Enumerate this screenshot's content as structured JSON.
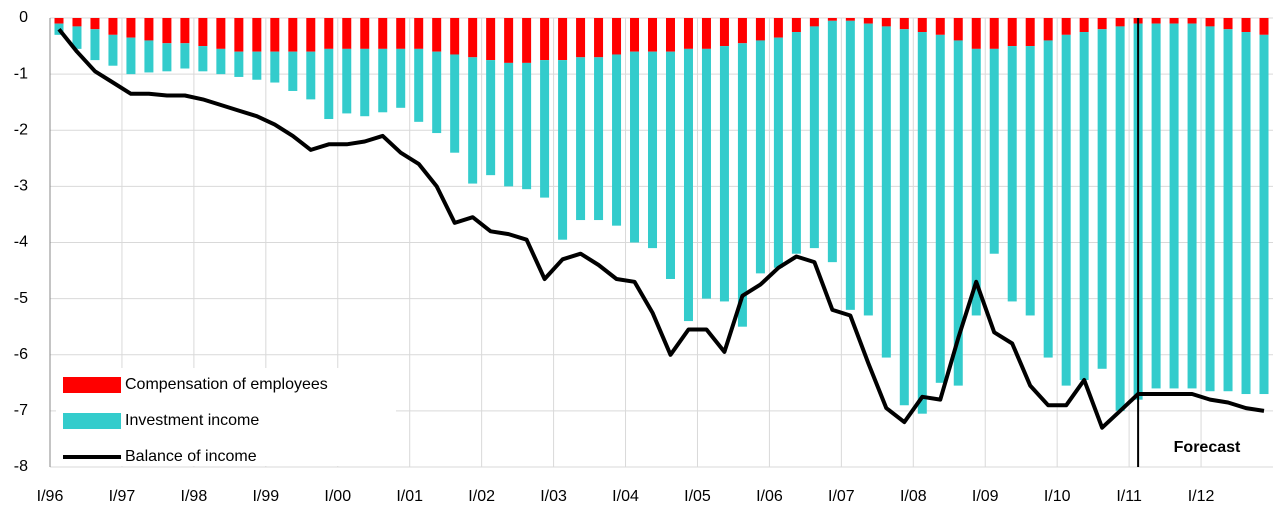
{
  "chart_data": {
    "type": "stacked-bar-line",
    "categories": [
      "I/96",
      null,
      null,
      null,
      "I/97",
      null,
      null,
      null,
      "I/98",
      null,
      null,
      null,
      "I/99",
      null,
      null,
      null,
      "I/00",
      null,
      null,
      null,
      "I/01",
      null,
      null,
      null,
      "I/02",
      null,
      null,
      null,
      "I/03",
      null,
      null,
      null,
      "I/04",
      null,
      null,
      null,
      "I/05",
      null,
      null,
      null,
      "I/06",
      null,
      null,
      null,
      "I/07",
      null,
      null,
      null,
      "I/08",
      null,
      null,
      null,
      "I/09",
      null,
      null,
      null,
      "I/10",
      null,
      null,
      null,
      "I/11",
      null,
      null,
      null,
      "I/12",
      null,
      null,
      null
    ],
    "series": [
      {
        "name": "Compensation of employees",
        "color": "#ff0000",
        "kind": "bar",
        "values": [
          -0.1,
          -0.15,
          -0.2,
          -0.3,
          -0.35,
          -0.4,
          -0.45,
          -0.45,
          -0.5,
          -0.55,
          -0.6,
          -0.6,
          -0.6,
          -0.6,
          -0.6,
          -0.55,
          -0.55,
          -0.55,
          -0.55,
          -0.55,
          -0.55,
          -0.6,
          -0.65,
          -0.7,
          -0.75,
          -0.8,
          -0.8,
          -0.75,
          -0.75,
          -0.7,
          -0.7,
          -0.65,
          -0.6,
          -0.6,
          -0.6,
          -0.55,
          -0.55,
          -0.5,
          -0.45,
          -0.4,
          -0.35,
          -0.25,
          -0.15,
          -0.05,
          -0.05,
          -0.1,
          -0.15,
          -0.2,
          -0.25,
          -0.3,
          -0.4,
          -0.55,
          -0.55,
          -0.5,
          -0.5,
          -0.4,
          -0.3,
          -0.25,
          -0.2,
          -0.15,
          -0.1,
          -0.1,
          -0.1,
          -0.1,
          -0.15,
          -0.2,
          -0.25,
          -0.3
        ]
      },
      {
        "name": "Investment income",
        "color": "#33cccc",
        "kind": "bar",
        "values": [
          -0.2,
          -0.4,
          -0.55,
          -0.55,
          -0.65,
          -0.57,
          -0.5,
          -0.45,
          -0.45,
          -0.45,
          -0.45,
          -0.5,
          -0.55,
          -0.7,
          -0.85,
          -1.25,
          -1.15,
          -1.2,
          -1.13,
          -1.05,
          -1.3,
          -1.45,
          -1.75,
          -2.25,
          -2.05,
          -2.2,
          -2.25,
          -2.45,
          -3.2,
          -2.9,
          -2.9,
          -3.05,
          -3.4,
          -3.5,
          -4.05,
          -4.85,
          -4.45,
          -4.55,
          -5.05,
          -4.15,
          -4.1,
          -3.95,
          -3.95,
          -4.3,
          -5.15,
          -5.2,
          -5.9,
          -6.7,
          -6.8,
          -6.2,
          -6.15,
          -4.75,
          -3.65,
          -4.55,
          -4.8,
          -5.65,
          -6.25,
          -6.2,
          -6.05,
          -6.85,
          -6.7,
          -6.5,
          -6.5,
          -6.5,
          -6.5,
          -6.45,
          -6.45,
          -6.4
        ]
      },
      {
        "name": "Balance of income",
        "color": "#000000",
        "kind": "line",
        "values": [
          -0.2,
          -0.6,
          -0.95,
          -1.15,
          -1.35,
          -1.35,
          -1.38,
          -1.38,
          -1.45,
          -1.55,
          -1.65,
          -1.75,
          -1.9,
          -2.1,
          -2.35,
          -2.25,
          -2.25,
          -2.2,
          -2.1,
          -2.4,
          -2.6,
          -3.0,
          -3.65,
          -3.55,
          -3.8,
          -3.85,
          -3.95,
          -4.65,
          -4.3,
          -4.2,
          -4.4,
          -4.65,
          -4.7,
          -5.25,
          -6.0,
          -5.55,
          -5.55,
          -5.95,
          -4.95,
          -4.75,
          -4.45,
          -4.25,
          -4.35,
          -5.2,
          -5.3,
          -6.15,
          -6.95,
          -7.2,
          -6.75,
          -6.8,
          -5.7,
          -4.7,
          -5.6,
          -5.8,
          -6.55,
          -6.9,
          -6.9,
          -6.45,
          -7.3,
          -7.0,
          -6.7,
          -6.7,
          -6.7,
          -6.7,
          -6.8,
          -6.85,
          -6.95,
          -7.0
        ]
      }
    ],
    "ylim": [
      -8,
      0
    ],
    "yticks": [
      0,
      -1,
      -2,
      -3,
      -4,
      -5,
      -6,
      -7,
      -8
    ],
    "grid": true,
    "legend": "bottom-left",
    "annotations": [
      {
        "text": "Forecast"
      }
    ]
  }
}
